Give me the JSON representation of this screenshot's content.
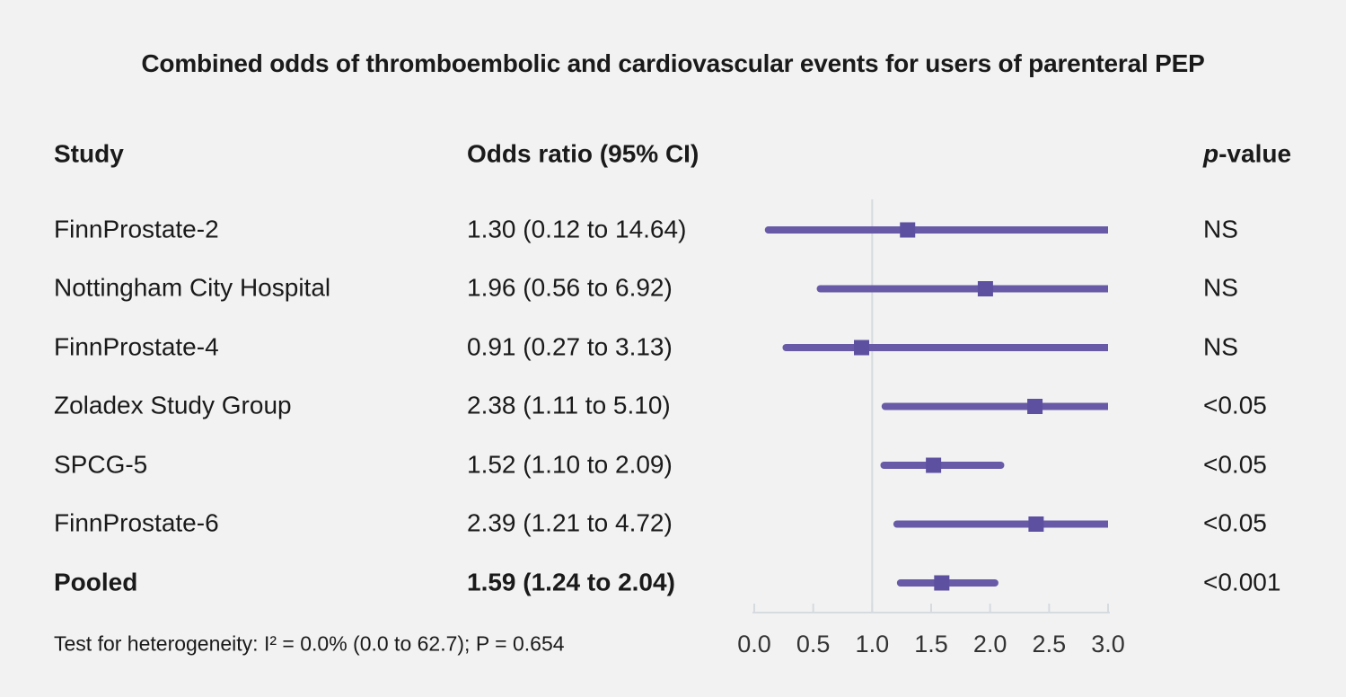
{
  "title": "Combined odds of thromboembolic and cardiovascular events for users of parenteral PEP",
  "columns": {
    "study": "Study",
    "odds_ratio": "Odds ratio (95% CI)",
    "p_italic": "p",
    "p_rest": "-value"
  },
  "footer": "Test for heterogeneity: I² = 0.0% (0.0 to 62.7); P = 0.654",
  "colors": {
    "ci_line": "#685aa6",
    "marker": "#5e50a0",
    "axis": "#d6dbdf",
    "tick_label": "#333333",
    "background": "#f2f2f2",
    "text": "#1a1a1a"
  },
  "chart_data": {
    "type": "forest",
    "title": "Combined odds of thromboembolic and cardiovascular events for users of parenteral PEP",
    "xlabel": "",
    "xlim": [
      0.0,
      3.0
    ],
    "reference_line": 1.0,
    "axis_ticks": [
      0.0,
      0.5,
      1.0,
      1.5,
      2.0,
      2.5,
      3.0
    ],
    "axis_tick_labels": [
      "0.0",
      "0.5",
      "1.0",
      "1.5",
      "2.0",
      "2.5",
      "3.0"
    ],
    "grid": false,
    "rows": [
      {
        "study": "FinnProstate-2",
        "or": 1.3,
        "ci_low": 0.12,
        "ci_high": 14.64,
        "or_label": "1.30 (0.12 to 14.64)",
        "p": "NS",
        "bold": false
      },
      {
        "study": "Nottingham City Hospital",
        "or": 1.96,
        "ci_low": 0.56,
        "ci_high": 6.92,
        "or_label": "1.96 (0.56 to 6.92)",
        "p": "NS",
        "bold": false
      },
      {
        "study": "FinnProstate-4",
        "or": 0.91,
        "ci_low": 0.27,
        "ci_high": 3.13,
        "or_label": "0.91 (0.27 to 3.13)",
        "p": "NS",
        "bold": false
      },
      {
        "study": "Zoladex Study Group",
        "or": 2.38,
        "ci_low": 1.11,
        "ci_high": 5.1,
        "or_label": "2.38 (1.11 to 5.10)",
        "p": "<0.05",
        "bold": false
      },
      {
        "study": "SPCG-5",
        "or": 1.52,
        "ci_low": 1.1,
        "ci_high": 2.09,
        "or_label": "1.52 (1.10 to 2.09)",
        "p": "<0.05",
        "bold": false
      },
      {
        "study": "FinnProstate-6",
        "or": 2.39,
        "ci_low": 1.21,
        "ci_high": 4.72,
        "or_label": "2.39 (1.21 to 4.72)",
        "p": "<0.05",
        "bold": false
      },
      {
        "study": "Pooled",
        "or": 1.59,
        "ci_low": 1.24,
        "ci_high": 2.04,
        "or_label": "1.59 (1.24 to 2.04)",
        "p": "<0.001",
        "bold": true
      }
    ]
  }
}
